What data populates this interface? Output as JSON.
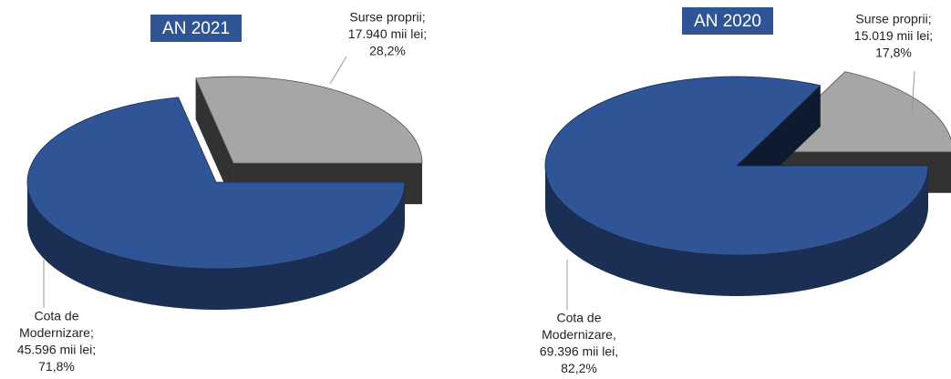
{
  "chart_data": [
    {
      "type": "pie3d",
      "title": "AN 2021",
      "data_labels": [
        [
          "Surse proprii;",
          "17.940 mii lei;"
        ],
        [
          "Cota de",
          "Modernizare;",
          "45.596 mii lei;"
        ]
      ],
      "values": [
        28.2,
        71.8
      ],
      "value_labels": [
        "28,2%",
        "71,8%"
      ],
      "colors": [
        "#a6a6a6",
        "#2f5597"
      ],
      "exploded": 0
    },
    {
      "type": "pie3d",
      "title": "AN 2020",
      "data_labels": [
        [
          "Surse proprii;",
          "15.019 mii lei;"
        ],
        [
          "Cota de",
          "Modernizare,",
          "69.396 mii lei,"
        ]
      ],
      "values": [
        17.8,
        82.2
      ],
      "value_labels": [
        "17,8%",
        "82,2%"
      ],
      "colors": [
        "#a6a6a6",
        "#2f5597"
      ],
      "exploded": 0
    }
  ]
}
